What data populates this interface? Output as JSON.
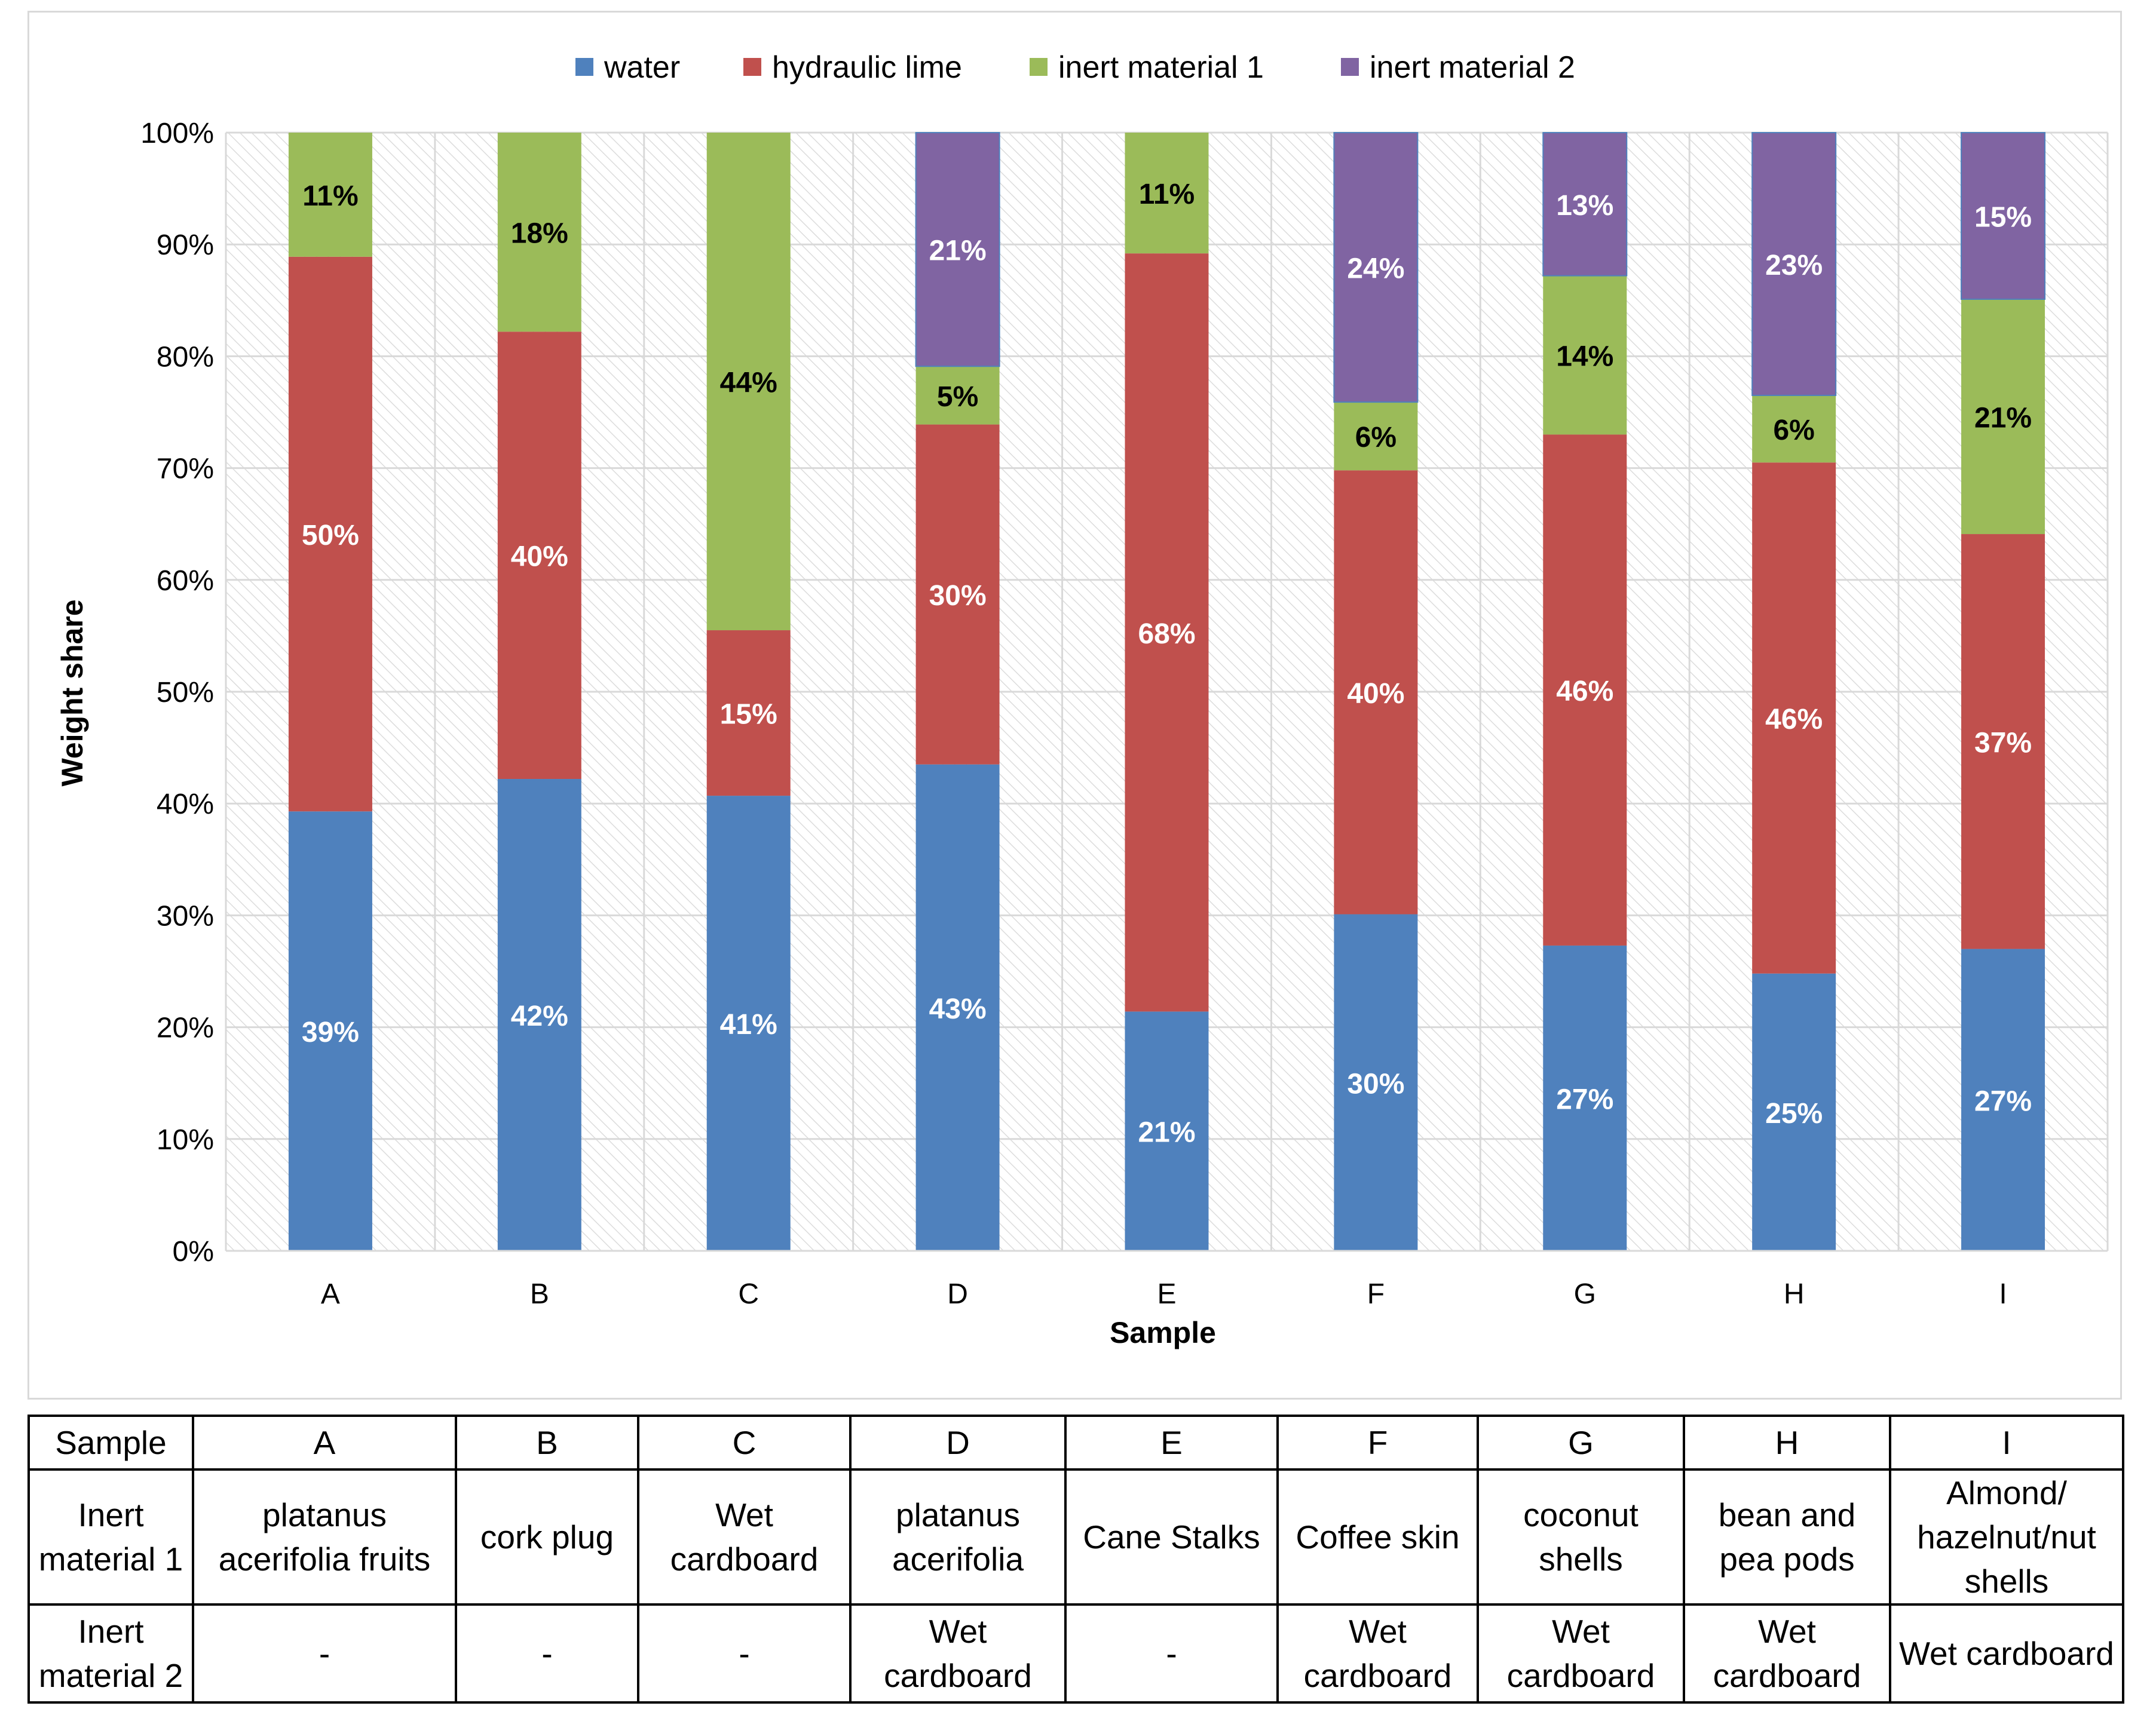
{
  "chart_data": {
    "type": "bar",
    "stacked": true,
    "percent": true,
    "title": "",
    "xlabel": "Sample",
    "ylabel": "Weight  share",
    "ylim": [
      0,
      100
    ],
    "yticks": [
      "0%",
      "10%",
      "20%",
      "30%",
      "40%",
      "50%",
      "60%",
      "70%",
      "80%",
      "90%",
      "100%"
    ],
    "categories": [
      "A",
      "B",
      "C",
      "D",
      "E",
      "F",
      "G",
      "H",
      "I"
    ],
    "legend_position": "top-center",
    "series": [
      {
        "name": "water",
        "color": "#4f81bd",
        "label_color": "#ffffff",
        "values": [
          39.3,
          42.2,
          40.7,
          43.5,
          21.4,
          30.1,
          27.3,
          24.8,
          27.0
        ],
        "labels": [
          "39%",
          "42%",
          "41%",
          "43%",
          "21%",
          "30%",
          "27%",
          "25%",
          "27%"
        ]
      },
      {
        "name": "hydraulic lime",
        "color": "#c0504d",
        "label_color": "#ffffff",
        "values": [
          49.6,
          40.0,
          14.8,
          30.4,
          67.8,
          39.7,
          45.7,
          45.7,
          37.1
        ],
        "labels": [
          "50%",
          "40%",
          "15%",
          "30%",
          "68%",
          "40%",
          "46%",
          "46%",
          "37%"
        ]
      },
      {
        "name": "inert material 1",
        "color": "#9bbb59",
        "label_color": "#000000",
        "values": [
          11.1,
          17.8,
          44.5,
          5.2,
          10.8,
          6.1,
          14.2,
          6.0,
          21.0
        ],
        "labels": [
          "11%",
          "18%",
          "44%",
          "5%",
          "11%",
          "6%",
          "14%",
          "6%",
          "21%"
        ]
      },
      {
        "name": "inert material 2",
        "color": "#8064a2",
        "label_color": "#ffffff",
        "values": [
          0,
          0,
          0,
          20.9,
          0,
          24.1,
          12.8,
          23.5,
          14.9
        ],
        "labels": [
          "",
          "",
          "",
          "21%",
          "",
          "24%",
          "13%",
          "23%",
          "15%"
        ]
      }
    ]
  },
  "table": {
    "header_label": "Sample",
    "inert1_label": "Inert material 1",
    "inert2_label": "Inert material 2",
    "samples": [
      "A",
      "B",
      "C",
      "D",
      "E",
      "F",
      "G",
      "H",
      "I"
    ],
    "inert_material_1": [
      "platanus acerifolia fruits",
      "cork plug",
      "Wet cardboard",
      "platanus acerifolia",
      "Cane Stalks",
      "Coffee skin",
      "coconut shells",
      "bean and pea pods",
      "Almond/ hazelnut/nut shells"
    ],
    "inert_material_2": [
      "-",
      "-",
      "-",
      "Wet cardboard",
      "-",
      "Wet cardboard",
      "Wet cardboard",
      "Wet cardboard",
      "Wet cardboard"
    ]
  }
}
